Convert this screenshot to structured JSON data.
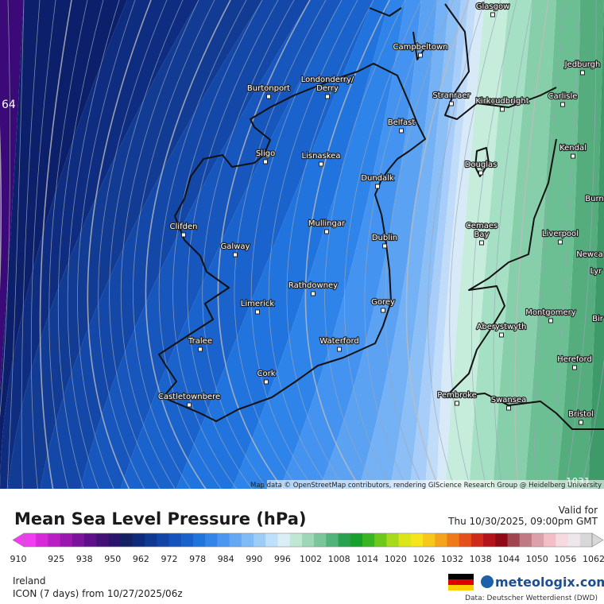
{
  "header": {
    "title": "Mean Sea Level Pressure (hPa)",
    "valid_label": "Valid for",
    "valid_time": "Thu 10/30/2025, 09:00pm GMT"
  },
  "map": {
    "attribution": "Map data © OpenStreetMap contributors, rendering GIScience Research Group @ Heidelberg University",
    "isobar_labels": [
      "64",
      "1031"
    ],
    "places": [
      "Glasgow",
      "Jedburgh",
      "Campbeltown",
      "Burtonport",
      "Londonderry/",
      "Derry",
      "Stranraer",
      "Kirkcudbright",
      "Carlisle",
      "Belfast",
      "Sligo",
      "Lisnaskea",
      "Kendal",
      "Douglas",
      "Dundalk",
      "Burn",
      "Clifden",
      "Mullingar",
      "Cemaes",
      "Bay",
      "Liverpool",
      "Dublin",
      "Galway",
      "Newca",
      "Lyr",
      "Rathdowney",
      "Limerick",
      "Gorey",
      "Montgomery",
      "Bir",
      "Aberystwyth",
      "Tralee",
      "Waterford",
      "Hereford",
      "Cork",
      "Pembroke",
      "Castletownbere",
      "Swansea",
      "Bristol"
    ]
  },
  "colorbar": {
    "ticks": [
      "910",
      "925",
      "938",
      "950",
      "962",
      "972",
      "978",
      "984",
      "990",
      "996",
      "1002",
      "1008",
      "1014",
      "1020",
      "1026",
      "1032",
      "1038",
      "1044",
      "1050",
      "1056",
      "1062"
    ],
    "colors": [
      "#f23cf2",
      "#d62ad9",
      "#b81fc4",
      "#9a18b0",
      "#7c139c",
      "#5f0f8a",
      "#431078",
      "#2a136a",
      "#142064",
      "#0d2a7c",
      "#0f3890",
      "#1146a6",
      "#1454bb",
      "#1962cc",
      "#2173dd",
      "#3385ea",
      "#4a96f0",
      "#64a8f4",
      "#80baf7",
      "#9dccf8",
      "#bfe0fa",
      "#d9eef5",
      "#bfe8d4",
      "#9cd8b7",
      "#79c79a",
      "#53b47b",
      "#2aa14f",
      "#18a02c",
      "#38b520",
      "#6cc91c",
      "#a7d91c",
      "#dbe61a",
      "#f5e51a",
      "#f7c81a",
      "#f5a31a",
      "#ef7a1a",
      "#e54f1a",
      "#d02a1a",
      "#b3131a",
      "#8f0a14",
      "#a0454e",
      "#c07a82",
      "#dba0aa",
      "#f2bfc7",
      "#f7dadf",
      "#ece7ea",
      "#d8d8d8"
    ]
  },
  "footer": {
    "region": "Ireland",
    "model": "ICON (7 days)  from  10/27/2025/06z",
    "logo": "meteologix.com",
    "source": "Data: Deutscher Wetterdienst (DWD)"
  }
}
